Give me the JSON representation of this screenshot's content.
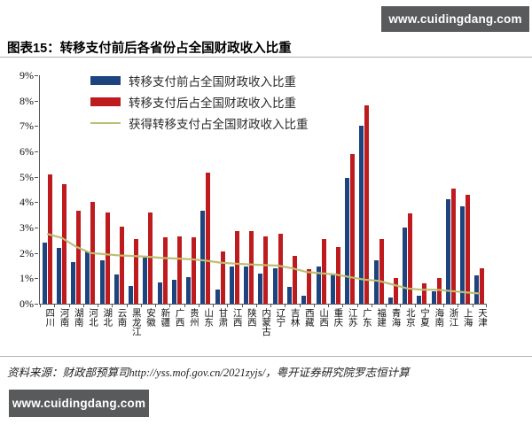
{
  "watermark_top": "www.cuidingdang.com",
  "watermark_bottom": "www.cuidingdang.com",
  "title": "图表15：转移支付前后各省份占全国财政收入比重",
  "source_note": "资料来源：财政部预算司http://yss.mof.gov.cn/2021zyjs/，粤开证券研究院罗志恒计算",
  "colors": {
    "bar_before": "#1e4480",
    "bar_after": "#be1b1e",
    "transfer_line": "#bdbe72",
    "badge_bg": "#595a5c",
    "axis": "#555555"
  },
  "chart_data": {
    "type": "bar",
    "title": "转移支付前后各省份占全国财政收入比重",
    "categories": [
      "四川",
      "河南",
      "湖南",
      "河北",
      "湖北",
      "云南",
      "黑龙江",
      "安徽",
      "新疆",
      "广西",
      "贵州",
      "山东",
      "甘肃",
      "江西",
      "陕西",
      "内蒙古",
      "辽宁",
      "吉林",
      "西藏",
      "山西",
      "重庆",
      "江苏",
      "广东",
      "福建",
      "青海",
      "北京",
      "宁夏",
      "海南",
      "浙江",
      "上海",
      "天津"
    ],
    "series": [
      {
        "name": "转移支付前占全国财政收入比重",
        "type": "bar",
        "color": "#1e4480",
        "values": [
          2.4,
          2.2,
          1.65,
          2.05,
          1.7,
          1.15,
          0.7,
          1.8,
          0.85,
          0.95,
          1.05,
          3.65,
          0.55,
          1.45,
          1.45,
          1.2,
          1.4,
          0.65,
          0.3,
          1.45,
          1.2,
          4.95,
          7.0,
          1.7,
          0.25,
          3.0,
          0.3,
          0.5,
          4.1,
          3.85,
          1.1
        ]
      },
      {
        "name": "转移支付后占全国财政收入比重",
        "type": "bar",
        "color": "#be1b1e",
        "values": [
          5.1,
          4.7,
          3.65,
          4.0,
          3.6,
          3.05,
          2.55,
          3.6,
          2.6,
          2.65,
          2.6,
          5.15,
          2.05,
          2.85,
          2.85,
          2.65,
          2.75,
          1.9,
          1.35,
          2.55,
          2.25,
          5.9,
          7.8,
          2.55,
          1.0,
          3.55,
          0.8,
          1.0,
          4.55,
          4.3,
          1.4
        ]
      },
      {
        "name": "获得转移支付占全国财政收入比重",
        "type": "line",
        "color": "#bdbe72",
        "values": [
          2.75,
          2.6,
          2.25,
          2.0,
          1.95,
          1.9,
          1.88,
          1.85,
          1.8,
          1.78,
          1.75,
          1.7,
          1.62,
          1.58,
          1.55,
          1.52,
          1.5,
          1.4,
          1.25,
          1.2,
          1.15,
          1.05,
          0.95,
          0.9,
          0.75,
          0.6,
          0.55,
          0.55,
          0.5,
          0.45,
          0.4
        ]
      }
    ],
    "ylim": [
      0,
      9
    ],
    "ytick_step": 1,
    "ytick_suffix": "%",
    "grid": false,
    "legend_position": "top-left"
  }
}
